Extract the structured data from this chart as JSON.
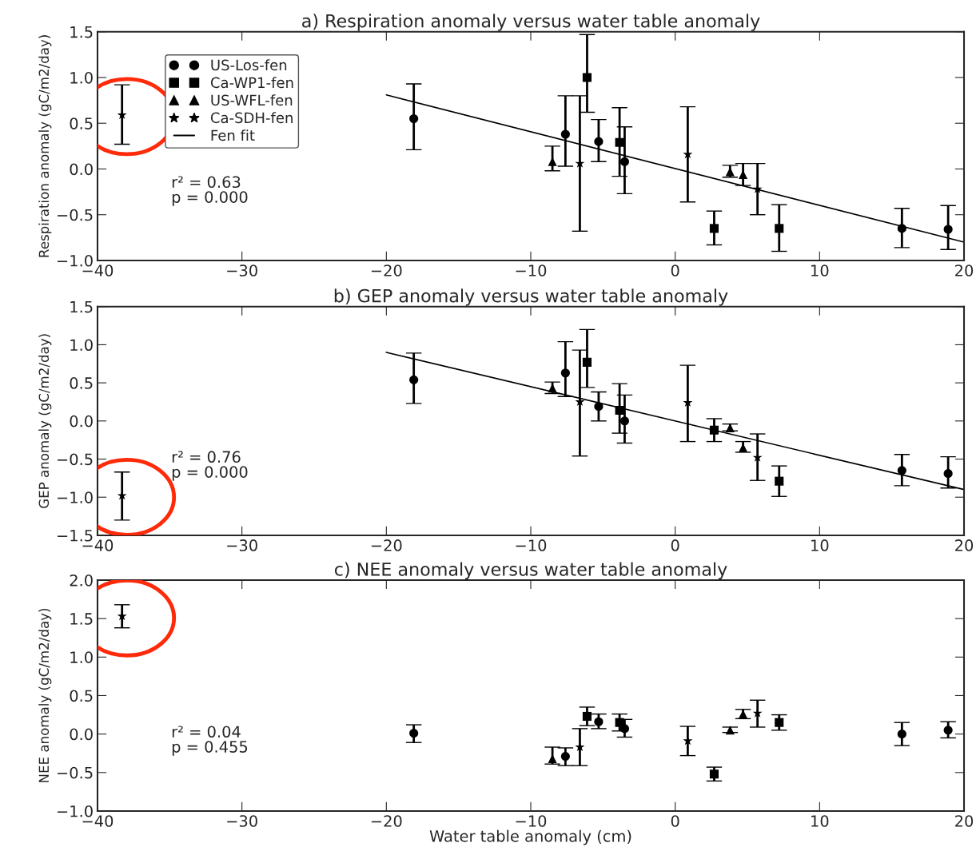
{
  "chart_data": [
    {
      "type": "scatter",
      "title": "a) Respiration anomaly versus water table anomaly",
      "ylabel": "Respiration anomaly (gC/m2/day)",
      "xlim": [
        -40,
        20
      ],
      "xticks": [
        {
          "value": -40,
          "label": "−40"
        },
        {
          "value": -30,
          "label": "−30"
        },
        {
          "value": -20,
          "label": "−20"
        },
        {
          "value": -10,
          "label": "−10"
        },
        0,
        10,
        20
      ],
      "ylim": [
        -1.0,
        1.5
      ],
      "yticks": [
        {
          "value": -1.0,
          "label": "−1.0"
        },
        {
          "value": -0.5,
          "label": "−0.5"
        },
        {
          "value": 0,
          "label": "0.0"
        },
        {
          "value": 0.5,
          "label": "0.5"
        },
        {
          "value": 1,
          "label": "1.0"
        },
        {
          "value": 1.5,
          "label": "1.5"
        }
      ],
      "grid": false,
      "legend": "top left",
      "annotations": [
        "r² = 0.63",
        "p = 0.000"
      ],
      "series": [
        {
          "name": "US-Los-fen",
          "marker": "circle",
          "color": "#000000",
          "x": [
            -18.1,
            -7.6,
            -5.3,
            -3.5,
            15.7,
            18.9
          ],
          "values": [
            0.55,
            0.38,
            0.3,
            0.08,
            -0.65,
            -0.66
          ],
          "errors": [
            [
              0.21,
              0.93
            ],
            [
              0.03,
              0.8
            ],
            [
              0.08,
              0.54
            ],
            [
              -0.27,
              0.46
            ],
            [
              -0.86,
              -0.43
            ],
            [
              -0.88,
              -0.4
            ]
          ]
        },
        {
          "name": "Ca-WP1-fen",
          "marker": "square",
          "color": "#000000",
          "x": [
            -6.1,
            -3.85,
            2.7,
            7.2
          ],
          "values": [
            1.0,
            0.29,
            -0.65,
            -0.65
          ],
          "errors": [
            [
              0.62,
              1.47
            ],
            [
              -0.08,
              0.67
            ],
            [
              -0.83,
              -0.46
            ],
            [
              -0.9,
              -0.39
            ]
          ]
        },
        {
          "name": "US-WFL-fen",
          "marker": "triangle",
          "color": "#000000",
          "x": [
            -8.5,
            3.8,
            4.7
          ],
          "values": [
            0.08,
            -0.03,
            -0.06
          ],
          "errors": [
            [
              -0.02,
              0.25
            ],
            [
              -0.09,
              0.04
            ],
            [
              -0.18,
              0.06
            ]
          ]
        },
        {
          "name": "Ca-SDH-fen",
          "marker": "star",
          "color": "#000000",
          "x": [
            -38.3,
            -6.6,
            0.87,
            5.7
          ],
          "values": [
            0.59,
            0.06,
            0.16,
            -0.22
          ],
          "errors": [
            [
              0.27,
              0.92
            ],
            [
              -0.68,
              0.8
            ],
            [
              -0.36,
              0.68
            ],
            [
              -0.5,
              0.06
            ]
          ]
        },
        {
          "name": "Fen fit",
          "type": "line",
          "marker": "none",
          "line_style": "solid",
          "color": "#000000",
          "x": [
            -20,
            20
          ],
          "values": [
            0.81,
            -0.8
          ]
        }
      ]
    },
    {
      "type": "scatter",
      "title": "b) GEP anomaly versus water table anomaly",
      "ylabel": "GEP anomaly (gC/m2/day)",
      "xlim": [
        -40,
        20
      ],
      "xticks": [
        {
          "value": -40,
          "label": "−40"
        },
        {
          "value": -30,
          "label": "−30"
        },
        {
          "value": -20,
          "label": "−20"
        },
        {
          "value": -10,
          "label": "−10"
        },
        0,
        10,
        20
      ],
      "ylim": [
        -1.5,
        1.5
      ],
      "yticks": [
        {
          "value": -1.5,
          "label": "−1.5"
        },
        {
          "value": -1.0,
          "label": "−1.0"
        },
        {
          "value": -0.5,
          "label": "−0.5"
        },
        {
          "value": 0,
          "label": "0.0"
        },
        {
          "value": 0.5,
          "label": "0.5"
        },
        {
          "value": 1,
          "label": "1.0"
        },
        {
          "value": 1.5,
          "label": "1.5"
        }
      ],
      "grid": false,
      "annotations": [
        "r² = 0.76",
        "p = 0.000"
      ],
      "series": [
        {
          "marker": "circle",
          "color": "#000000",
          "x": [
            -18.1,
            -7.6,
            -5.3,
            -3.5,
            15.7,
            18.9
          ],
          "values": [
            0.54,
            0.63,
            0.19,
            0.0,
            -0.65,
            -0.69
          ],
          "errors": [
            [
              0.23,
              0.89
            ],
            [
              0.32,
              1.04
            ],
            [
              0.0,
              0.38
            ],
            [
              -0.29,
              0.34
            ],
            [
              -0.85,
              -0.44
            ],
            [
              -0.88,
              -0.47
            ]
          ]
        },
        {
          "marker": "square",
          "color": "#000000",
          "x": [
            -6.1,
            -3.85,
            2.7,
            7.2
          ],
          "values": [
            0.77,
            0.14,
            -0.12,
            -0.79
          ],
          "errors": [
            [
              0.44,
              1.2
            ],
            [
              -0.16,
              0.49
            ],
            [
              -0.27,
              0.03
            ],
            [
              -0.99,
              -0.59
            ]
          ]
        },
        {
          "marker": "triangle",
          "color": "#000000",
          "x": [
            -8.5,
            3.8,
            4.7
          ],
          "values": [
            0.43,
            -0.09,
            -0.35
          ],
          "errors": [
            [
              0.36,
              0.51
            ],
            [
              -0.13,
              -0.04
            ],
            [
              -0.41,
              -0.27
            ]
          ]
        },
        {
          "marker": "star",
          "color": "#000000",
          "x": [
            -38.3,
            -6.6,
            0.87,
            5.7
          ],
          "values": [
            -0.98,
            0.25,
            0.24,
            -0.48
          ],
          "errors": [
            [
              -1.3,
              -0.67
            ],
            [
              -0.46,
              0.93
            ],
            [
              -0.27,
              0.73
            ],
            [
              -0.78,
              -0.17
            ]
          ]
        },
        {
          "type": "line",
          "marker": "none",
          "line_style": "solid",
          "color": "#000000",
          "x": [
            -20,
            20
          ],
          "values": [
            0.9,
            -0.9
          ]
        }
      ]
    },
    {
      "type": "scatter",
      "title": "c) NEE anomaly versus water table anomaly",
      "ylabel": "NEE anomaly (gC/m2/day)",
      "xlabel": "Water table anomaly (cm)",
      "xlim": [
        -40,
        20
      ],
      "xticks": [
        {
          "value": -40,
          "label": "−40"
        },
        {
          "value": -30,
          "label": "−30"
        },
        {
          "value": -20,
          "label": "−20"
        },
        {
          "value": -10,
          "label": "−10"
        },
        0,
        10,
        20
      ],
      "ylim": [
        -1.0,
        2.0
      ],
      "yticks": [
        {
          "value": -1.0,
          "label": "−1.0"
        },
        {
          "value": -0.5,
          "label": "−0.5"
        },
        {
          "value": 0,
          "label": "0.0"
        },
        {
          "value": 0.5,
          "label": "0.5"
        },
        {
          "value": 1,
          "label": "1.0"
        },
        {
          "value": 1.5,
          "label": "1.5"
        },
        {
          "value": 2,
          "label": "2.0"
        }
      ],
      "grid": false,
      "annotations": [
        "r² = 0.04",
        "p = 0.455"
      ],
      "series": [
        {
          "marker": "circle",
          "color": "#000000",
          "x": [
            -18.1,
            -7.6,
            -5.3,
            -3.5,
            15.7,
            18.9
          ],
          "values": [
            0.01,
            -0.29,
            0.16,
            0.07,
            0.0,
            0.05
          ],
          "errors": [
            [
              -0.11,
              0.12
            ],
            [
              -0.41,
              -0.18
            ],
            [
              0.07,
              0.26
            ],
            [
              -0.04,
              0.19
            ],
            [
              -0.15,
              0.15
            ],
            [
              -0.05,
              0.16
            ]
          ]
        },
        {
          "marker": "square",
          "color": "#000000",
          "x": [
            -6.1,
            -3.85,
            2.7,
            7.2
          ],
          "values": [
            0.23,
            0.15,
            -0.52,
            0.15
          ],
          "errors": [
            [
              0.11,
              0.35
            ],
            [
              0.04,
              0.26
            ],
            [
              -0.61,
              -0.43
            ],
            [
              0.05,
              0.25
            ]
          ]
        },
        {
          "marker": "triangle",
          "color": "#000000",
          "x": [
            -8.5,
            3.8,
            4.7
          ],
          "values": [
            -0.32,
            0.05,
            0.26
          ],
          "errors": [
            [
              -0.39,
              -0.17
            ],
            [
              0.02,
              0.09
            ],
            [
              0.2,
              0.32
            ]
          ]
        },
        {
          "marker": "star",
          "color": "#000000",
          "x": [
            -38.3,
            -6.6,
            0.87,
            5.7
          ],
          "values": [
            1.53,
            -0.17,
            -0.09,
            0.27
          ],
          "errors": [
            [
              1.38,
              1.68
            ],
            [
              -0.41,
              0.07
            ],
            [
              -0.28,
              0.1
            ],
            [
              0.09,
              0.44
            ]
          ]
        }
      ]
    }
  ]
}
